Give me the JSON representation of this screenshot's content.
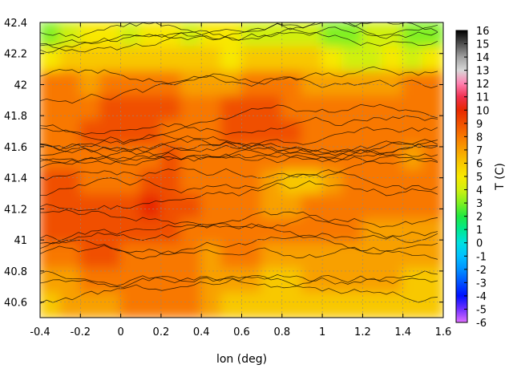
{
  "chart_data": {
    "type": "heatmap",
    "title": "",
    "xlabel": "lon (deg)",
    "ylabel": "",
    "xlim": [
      -0.4,
      1.6
    ],
    "ylim": [
      40.5,
      42.4
    ],
    "x_ticks": [
      "-0.4",
      "-0.2",
      "0",
      "0.2",
      "0.4",
      "0.6",
      "0.8",
      "1",
      "1.2",
      "1.4",
      "1.6"
    ],
    "y_ticks": [
      "40.6",
      "40.8",
      "41",
      "41.2",
      "41.4",
      "41.6",
      "41.8",
      "42",
      "42.2",
      "42.4"
    ],
    "colorbar": {
      "label": "T (C)",
      "range": [
        -6,
        16
      ],
      "ticks": [
        "-6",
        "-5",
        "-4",
        "-3",
        "-2",
        "-1",
        "0",
        "1",
        "2",
        "3",
        "4",
        "5",
        "6",
        "7",
        "8",
        "9",
        "10",
        "11",
        "12",
        "13",
        "14",
        "15",
        "16"
      ],
      "colors": [
        "#e070ff",
        "#7030ff",
        "#0010ff",
        "#0050ff",
        "#0090ff",
        "#00c0ff",
        "#00e0e0",
        "#00e890",
        "#20e840",
        "#80f020",
        "#d0f010",
        "#f8e800",
        "#f8c800",
        "#f8a000",
        "#f87800",
        "#f05000",
        "#e82800",
        "#f03050",
        "#ff80b0",
        "#d8d8d8",
        "#a0a0a0",
        "#505050",
        "#000000"
      ]
    },
    "grid": true,
    "field": {
      "description_values_C": [
        [
          3,
          4,
          5,
          5,
          4,
          5,
          5,
          4,
          5,
          5,
          4,
          4,
          4,
          4,
          3,
          3,
          4,
          4,
          3,
          3
        ],
        [
          5,
          6,
          6,
          6,
          6,
          6,
          6,
          6,
          6,
          5,
          6,
          6,
          6,
          6,
          5,
          4,
          4,
          5,
          4,
          5
        ],
        [
          8,
          8,
          7,
          8,
          8,
          8,
          8,
          7,
          7,
          7,
          8,
          8,
          8,
          7,
          7,
          7,
          7,
          7,
          8,
          8
        ],
        [
          8,
          8,
          8,
          9,
          9,
          9,
          9,
          8,
          8,
          9,
          9,
          9,
          8,
          8,
          8,
          8,
          8,
          8,
          8,
          8
        ],
        [
          8,
          8,
          9,
          9,
          9,
          9,
          8,
          8,
          8,
          9,
          9,
          9,
          9,
          8,
          8,
          8,
          8,
          8,
          8,
          8
        ],
        [
          8,
          8,
          8,
          8,
          8,
          8,
          9,
          8,
          8,
          8,
          8,
          8,
          8,
          8,
          8,
          8,
          8,
          8,
          7,
          8
        ],
        [
          9,
          9,
          8,
          8,
          8,
          9,
          9,
          8,
          8,
          8,
          8,
          7,
          6,
          6,
          7,
          8,
          8,
          8,
          8,
          8
        ],
        [
          9,
          9,
          9,
          9,
          9,
          10,
          9,
          9,
          8,
          8,
          8,
          7,
          7,
          8,
          8,
          8,
          8,
          8,
          8,
          8
        ],
        [
          9,
          9,
          9,
          9,
          9,
          9,
          9,
          8,
          8,
          8,
          8,
          8,
          8,
          8,
          8,
          8,
          7,
          7,
          7,
          7
        ],
        [
          8,
          8,
          9,
          9,
          8,
          8,
          8,
          8,
          7,
          8,
          8,
          7,
          7,
          7,
          7,
          7,
          7,
          7,
          7,
          7
        ],
        [
          7,
          7,
          8,
          8,
          8,
          8,
          8,
          8,
          7,
          7,
          7,
          6,
          6,
          7,
          7,
          7,
          7,
          7,
          6,
          6
        ],
        [
          6,
          7,
          7,
          7,
          8,
          8,
          8,
          8,
          7,
          6,
          6,
          6,
          6,
          6,
          6,
          6,
          6,
          6,
          6,
          6
        ]
      ]
    }
  }
}
